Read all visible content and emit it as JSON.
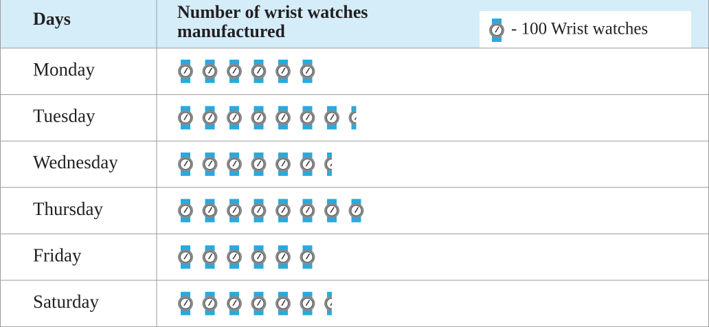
{
  "chart_data": {
    "type": "pictograph",
    "header": [
      "Days",
      "Number of wrist watches manufactured"
    ],
    "key": {
      "value": 100,
      "label": "- 100 Wrist watches"
    },
    "categories": [
      "Monday",
      "Tuesday",
      "Wednesday",
      "Thursday",
      "Friday",
      "Saturday"
    ],
    "values": [
      600,
      750,
      650,
      800,
      600,
      650
    ],
    "color": "#29a9e0"
  }
}
